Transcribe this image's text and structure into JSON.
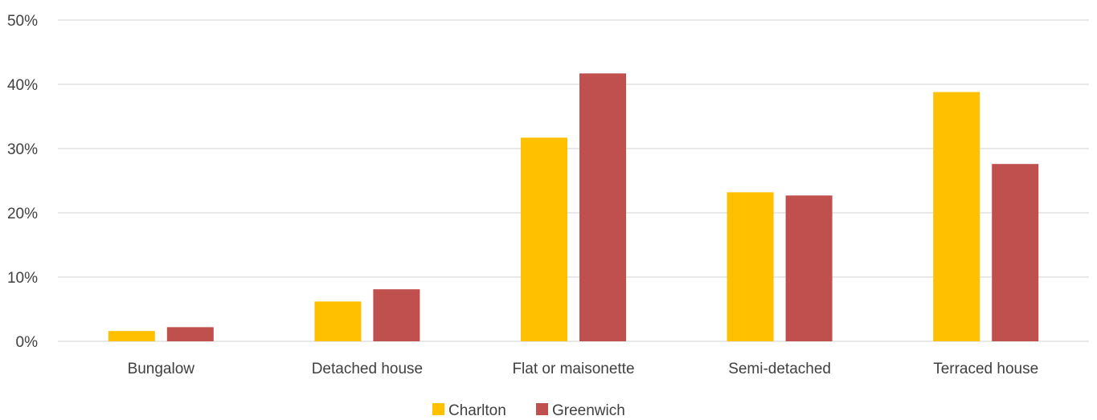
{
  "chart_data": {
    "type": "bar",
    "categories": [
      "Bungalow",
      "Detached house",
      "Flat or maisonette",
      "Semi-detached",
      "Terraced house"
    ],
    "series": [
      {
        "name": "Charlton",
        "values": [
          1.6,
          6.2,
          31.7,
          23.2,
          38.8
        ],
        "color": "#ffc000"
      },
      {
        "name": "Greenwich",
        "values": [
          2.2,
          8.1,
          41.7,
          22.7,
          27.6
        ],
        "color": "#c0504d"
      }
    ],
    "yticks": [
      "0%",
      "10%",
      "20%",
      "30%",
      "40%",
      "50%"
    ],
    "ylim": [
      0,
      50
    ],
    "grid": true,
    "legend": "bottom-center",
    "title": "",
    "xlabel": "",
    "ylabel": ""
  }
}
